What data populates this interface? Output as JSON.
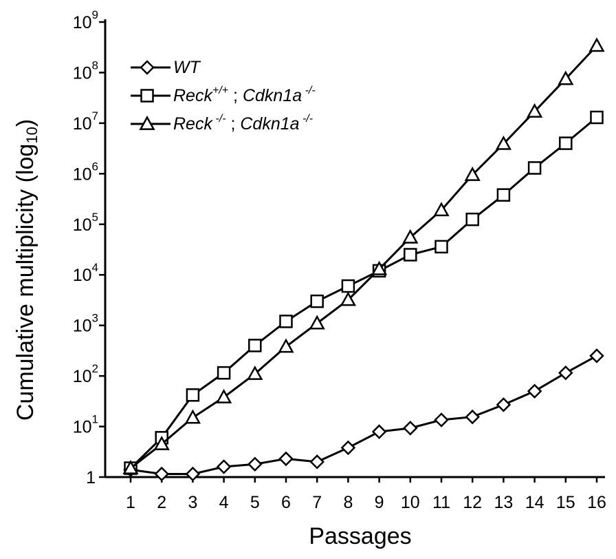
{
  "chart_data": {
    "type": "line",
    "title": "",
    "xlabel": "Passages",
    "ylabel": "Cumulative multiplicity (log10)",
    "x": [
      1,
      2,
      3,
      4,
      5,
      6,
      7,
      8,
      9,
      10,
      11,
      12,
      13,
      14,
      15,
      16
    ],
    "y_scale": "log",
    "ylim": [
      1,
      1000000000
    ],
    "y_ticks": [
      {
        "value": 1,
        "base": "1",
        "exp": ""
      },
      {
        "value": 10,
        "base": "10",
        "exp": "1"
      },
      {
        "value": 100,
        "base": "10",
        "exp": "2"
      },
      {
        "value": 1000,
        "base": "10",
        "exp": "3"
      },
      {
        "value": 10000,
        "base": "10",
        "exp": "4"
      },
      {
        "value": 100000,
        "base": "10",
        "exp": "5"
      },
      {
        "value": 1000000,
        "base": "10",
        "exp": "6"
      },
      {
        "value": 10000000,
        "base": "10",
        "exp": "7"
      },
      {
        "value": 100000000,
        "base": "10",
        "exp": "8"
      },
      {
        "value": 1000000000,
        "base": "10",
        "exp": "9"
      }
    ],
    "legend_position": "top-left",
    "grid": false,
    "series": [
      {
        "name": "WT",
        "marker": "diamond",
        "values": [
          1.4,
          1.15,
          1.15,
          1.6,
          1.8,
          2.3,
          2.0,
          3.8,
          7.9,
          9.3,
          13.5,
          15.5,
          27,
          50,
          115,
          250
        ]
      },
      {
        "name": "Reck+/+ ; Cdkn1a-/-",
        "marker": "square",
        "values": [
          1.5,
          6,
          42,
          115,
          400,
          1200,
          3000,
          6000,
          12000,
          25000,
          36000,
          125000,
          380000,
          1300000,
          4000000,
          13000000
        ]
      },
      {
        "name": "Reck-/- ; Cdkn1a-/-",
        "marker": "triangle",
        "values": [
          1.5,
          4.5,
          15,
          38,
          110,
          380,
          1100,
          3200,
          13000,
          55000,
          190000,
          950000,
          3900000,
          17000000,
          75000000,
          340000000
        ]
      }
    ]
  },
  "legend": {
    "wt": {
      "name": "WT"
    },
    "reck_pp": {
      "a": "Reck",
      "a_sup": "+/+",
      "sep": " ; ",
      "b": "Cdkn1a",
      "b_sup": " -/-"
    },
    "reck_mm": {
      "a": "Reck",
      "a_sup": " -/-",
      "sep": " ; ",
      "b": "Cdkn1a",
      "b_sup": " -/-"
    }
  },
  "axis_titles": {
    "x": "Passages",
    "y_main": "Cumulative multiplicity (log",
    "y_sub": "10",
    "y_close": ")"
  }
}
